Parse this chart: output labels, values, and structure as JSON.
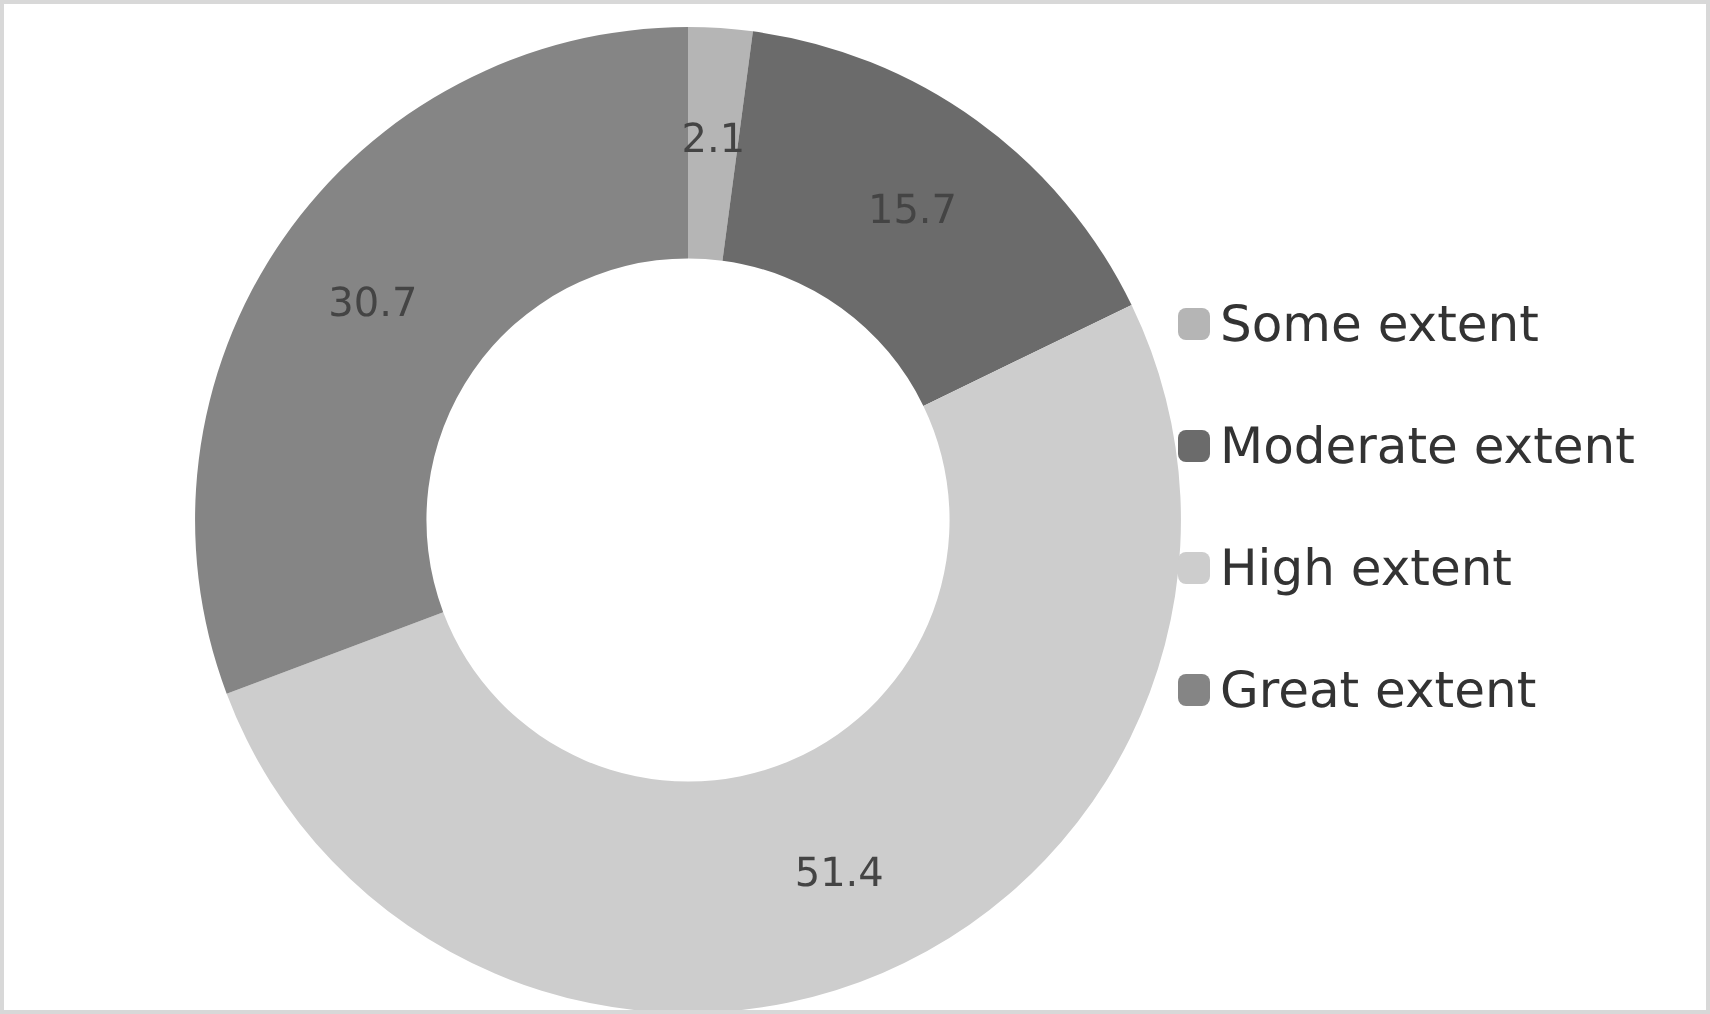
{
  "chart_data": {
    "type": "donut",
    "categories": [
      "Some extent",
      "Moderate extent",
      "High extent",
      "Great extent"
    ],
    "values": [
      2.1,
      15.7,
      51.4,
      30.7
    ],
    "colors": [
      "#b5b5b5",
      "#6b6b6b",
      "#cdcdcd",
      "#858585"
    ],
    "data_labels": true,
    "legend": "right"
  }
}
